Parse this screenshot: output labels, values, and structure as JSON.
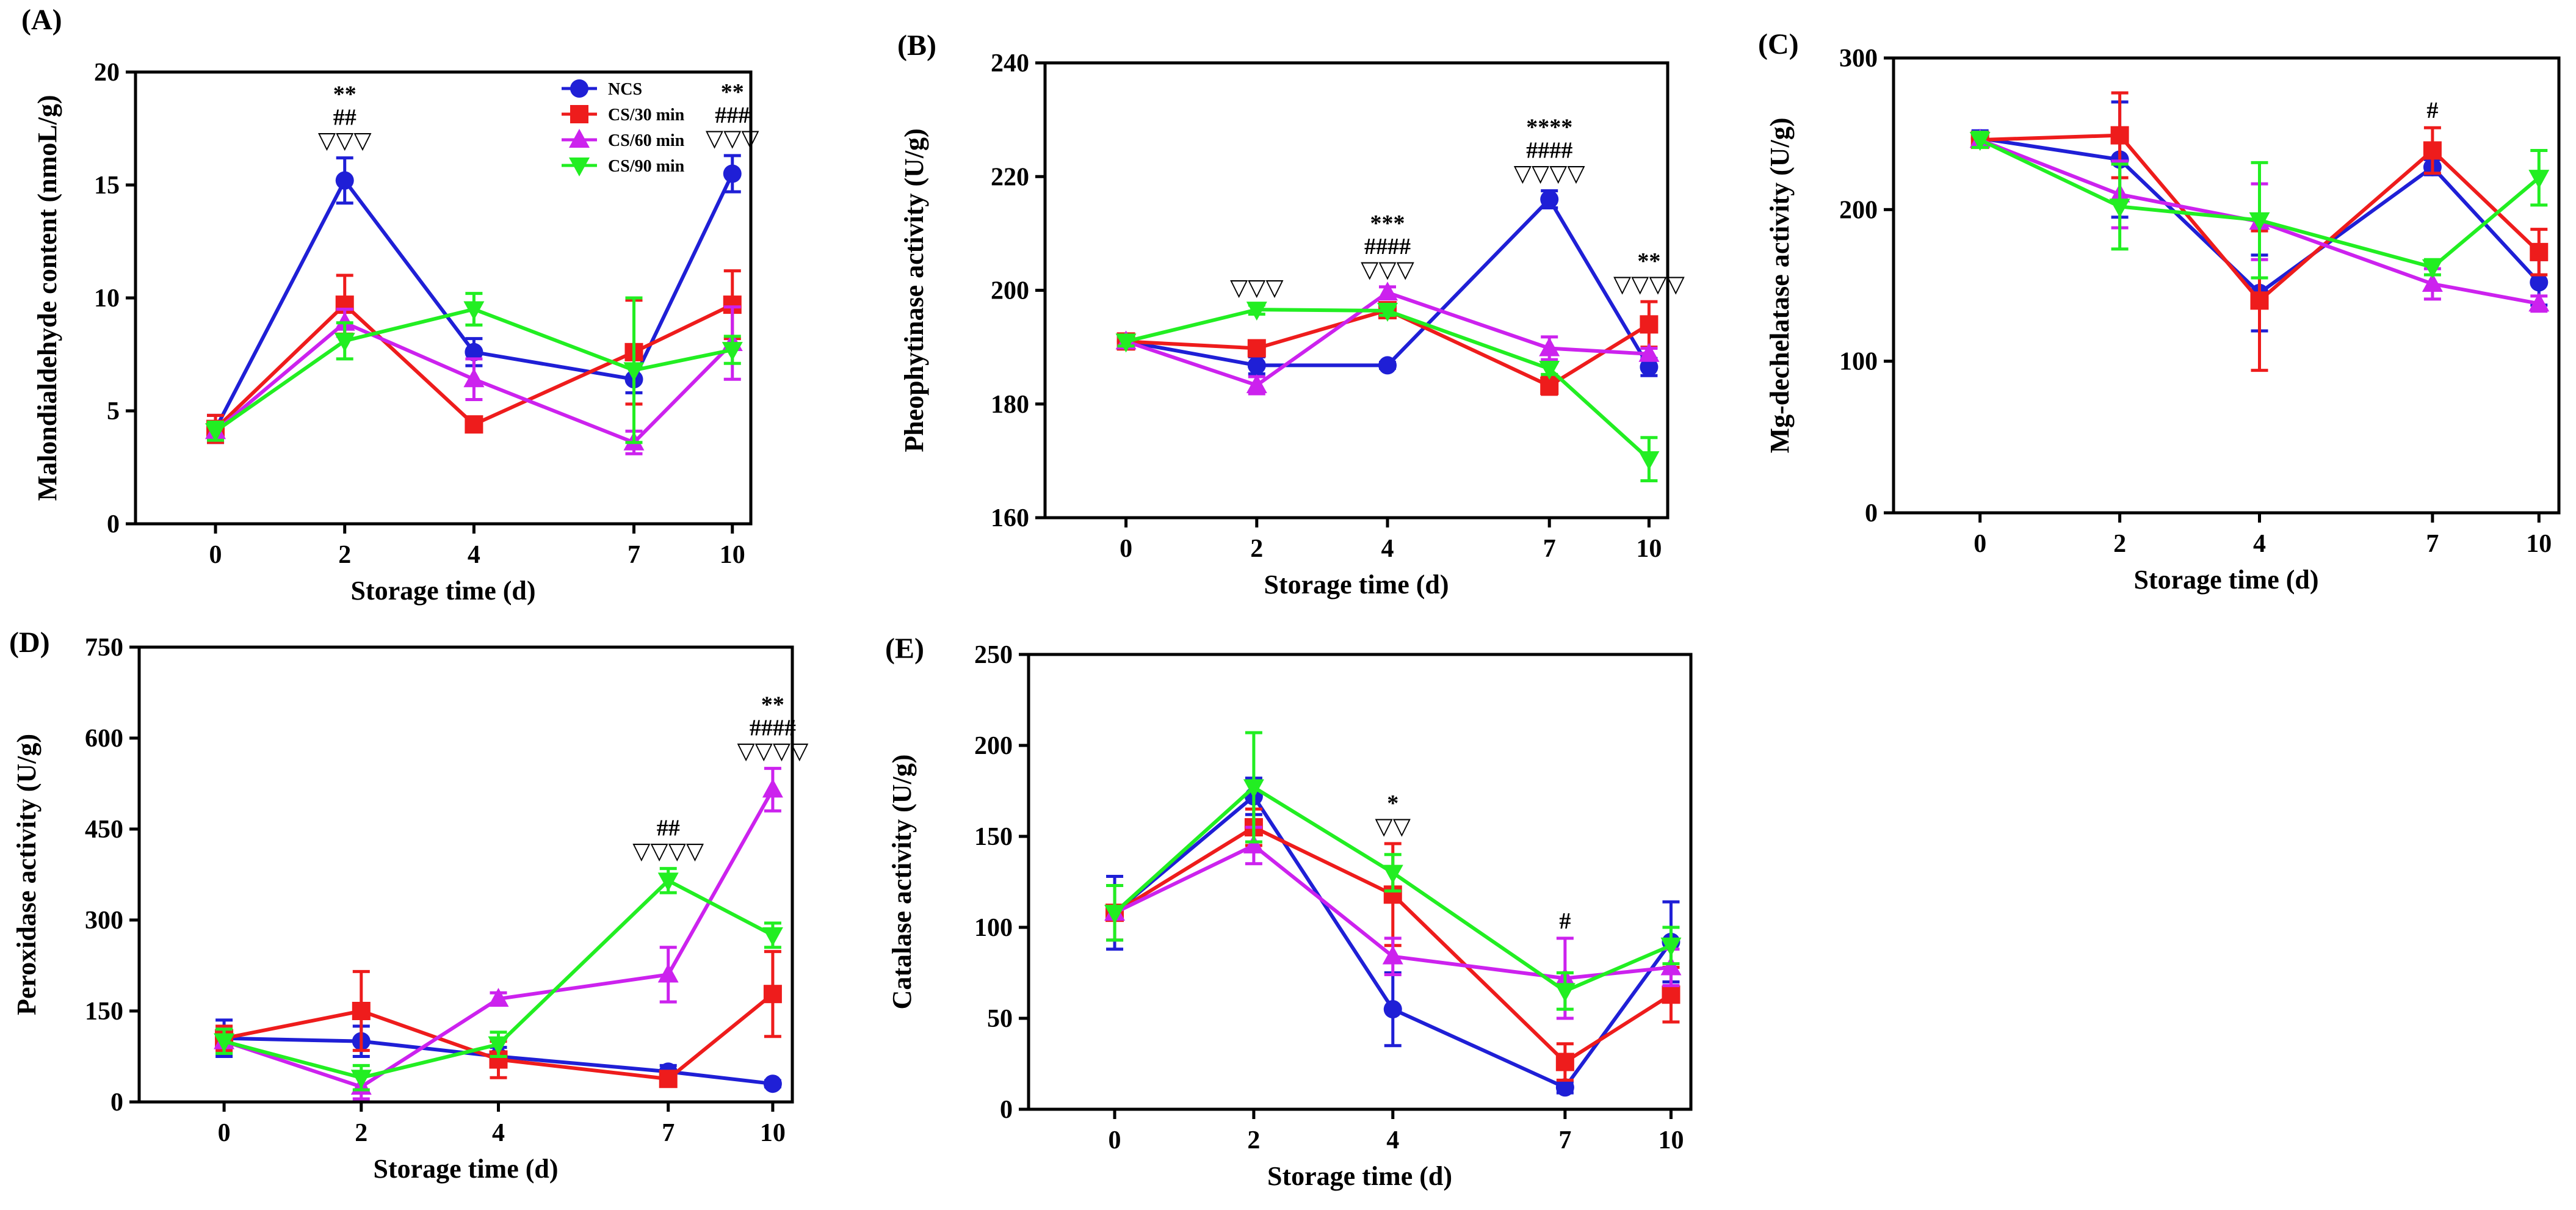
{
  "legend": [
    {
      "name": "NCS",
      "color": "#1f1fd6",
      "marker": "circle"
    },
    {
      "name": "CS/30 min",
      "color": "#ee1c1c",
      "marker": "square"
    },
    {
      "name": "CS/60 min",
      "color": "#cc22ee",
      "marker": "triangle-up"
    },
    {
      "name": "CS/90 min",
      "color": "#22ee22",
      "marker": "triangle-down"
    }
  ],
  "chart_data": [
    {
      "panel": "(A)",
      "type": "line",
      "xlabel": "Storage time (d)",
      "ylabel": "Malondialdehyde content (nmoL/g)",
      "x": [
        "0",
        "2",
        "4",
        "7",
        "10"
      ],
      "yticks": [
        "0",
        "5",
        "10",
        "15",
        "20"
      ],
      "ylim": [
        0,
        20
      ],
      "show_legend": true,
      "series": [
        {
          "name": "NCS",
          "values": [
            4.2,
            15.2,
            7.6,
            6.4,
            15.5
          ],
          "errors": [
            0.6,
            1.0,
            0.6,
            0.6,
            0.8
          ]
        },
        {
          "name": "CS/30 min",
          "values": [
            4.2,
            9.7,
            4.4,
            7.6,
            9.7
          ],
          "errors": [
            0.6,
            1.3,
            0.3,
            2.3,
            1.5
          ]
        },
        {
          "name": "CS/60 min",
          "values": [
            4.1,
            8.9,
            6.4,
            3.6,
            8.0
          ],
          "errors": [
            0.4,
            0.6,
            0.9,
            0.5,
            1.6
          ]
        },
        {
          "name": "CS/90 min",
          "values": [
            4.1,
            8.1,
            9.5,
            6.8,
            7.7
          ],
          "errors": [
            0.4,
            0.8,
            0.7,
            3.2,
            0.6
          ]
        }
      ],
      "annotations": [
        {
          "x": "2",
          "lines": [
            "**",
            "##",
            "▽▽▽"
          ]
        },
        {
          "x": "10",
          "lines": [
            "**",
            "###",
            "▽▽▽"
          ]
        }
      ]
    },
    {
      "panel": "(B)",
      "type": "line",
      "xlabel": "Storage time (d)",
      "ylabel": "Pheophytinase activity (U/g)",
      "x": [
        "0",
        "2",
        "4",
        "7",
        "10"
      ],
      "yticks": [
        "160",
        "180",
        "200",
        "220",
        "240"
      ],
      "ylim": [
        160,
        240
      ],
      "show_legend": false,
      "series": [
        {
          "name": "NCS",
          "values": [
            191,
            186.8,
            186.8,
            216,
            186.5
          ],
          "errors": [
            0.8,
            1.5,
            0.5,
            1.5,
            1.5
          ]
        },
        {
          "name": "CS/30 min",
          "values": [
            191,
            189.8,
            196.5,
            183.2,
            194
          ],
          "errors": [
            0.8,
            0.8,
            1.0,
            1.5,
            4.0
          ]
        },
        {
          "name": "CS/60 min",
          "values": [
            191,
            183.3,
            199.6,
            189.8,
            188.8
          ],
          "errors": [
            0.8,
            1.5,
            1.0,
            2.0,
            1.0
          ]
        },
        {
          "name": "CS/90 min",
          "values": [
            191,
            196.6,
            196.4,
            186.2,
            170.3
          ],
          "errors": [
            0.8,
            0.8,
            0.8,
            1.0,
            3.8
          ]
        }
      ],
      "annotations": [
        {
          "x": "2",
          "lines": [
            "▽▽▽"
          ]
        },
        {
          "x": "4",
          "lines": [
            "***",
            "####",
            "▽▽▽"
          ]
        },
        {
          "x": "7",
          "lines": [
            "****",
            "####",
            "▽▽▽▽"
          ]
        },
        {
          "x": "10",
          "lines": [
            "**",
            "▽▽▽▽"
          ]
        }
      ]
    },
    {
      "panel": "(C)",
      "type": "line",
      "xlabel": "Storage time (d)",
      "ylabel": "Mg-dechelatase activity (U/g)",
      "x": [
        "0",
        "2",
        "4",
        "7",
        "10"
      ],
      "yticks": [
        "0",
        "100",
        "200",
        "300"
      ],
      "ylim": [
        0,
        300
      ],
      "show_legend": false,
      "series": [
        {
          "name": "NCS",
          "values": [
            247,
            233,
            145,
            228,
            152
          ],
          "errors": [
            5,
            38,
            25,
            5,
            15
          ]
        },
        {
          "name": "CS/30 min",
          "values": [
            246,
            249,
            140,
            239,
            172
          ],
          "errors": [
            5,
            28,
            46,
            15,
            15
          ]
        },
        {
          "name": "CS/60 min",
          "values": [
            246,
            210,
            192,
            151,
            138
          ],
          "errors": [
            5,
            22,
            25,
            10,
            5
          ]
        },
        {
          "name": "CS/90 min",
          "values": [
            246,
            202,
            193,
            162,
            221
          ],
          "errors": [
            5,
            28,
            38,
            5,
            18
          ]
        }
      ],
      "annotations": [
        {
          "x": "7",
          "lines": [
            "#"
          ]
        }
      ]
    },
    {
      "panel": "(D)",
      "type": "line",
      "xlabel": "Storage time (d)",
      "ylabel": "Peroxidase activity (U/g)",
      "x": [
        "0",
        "2",
        "4",
        "7",
        "10"
      ],
      "yticks": [
        "0",
        "150",
        "300",
        "450",
        "600",
        "750"
      ],
      "ylim": [
        0,
        750
      ],
      "show_legend": false,
      "series": [
        {
          "name": "NCS",
          "values": [
            105,
            100,
            75,
            50,
            30
          ],
          "errors": [
            30,
            25,
            15,
            10,
            5
          ]
        },
        {
          "name": "CS/30 min",
          "values": [
            105,
            150,
            70,
            38,
            178
          ],
          "errors": [
            20,
            65,
            30,
            10,
            70
          ]
        },
        {
          "name": "CS/60 min",
          "values": [
            100,
            25,
            170,
            210,
            515
          ],
          "errors": [
            20,
            20,
            10,
            45,
            35
          ]
        },
        {
          "name": "CS/90 min",
          "values": [
            100,
            40,
            95,
            365,
            275
          ],
          "errors": [
            20,
            20,
            20,
            20,
            20
          ]
        }
      ],
      "annotations": [
        {
          "x": "7",
          "lines": [
            "##",
            "▽▽▽▽"
          ]
        },
        {
          "x": "10",
          "lines": [
            "**",
            "####",
            "▽▽▽▽"
          ]
        }
      ]
    },
    {
      "panel": "(E)",
      "type": "line",
      "xlabel": "Storage time (d)",
      "ylabel": "Catalase activity (U/g)",
      "x": [
        "0",
        "2",
        "4",
        "7",
        "10"
      ],
      "yticks": [
        "0",
        "50",
        "100",
        "150",
        "200",
        "250"
      ],
      "ylim": [
        0,
        250
      ],
      "show_legend": false,
      "series": [
        {
          "name": "NCS",
          "values": [
            108,
            172,
            55,
            12,
            92
          ],
          "errors": [
            20,
            10,
            20,
            3,
            22
          ]
        },
        {
          "name": "CS/30 min",
          "values": [
            108,
            155,
            118,
            26,
            63
          ],
          "errors": [
            15,
            10,
            28,
            10,
            15
          ]
        },
        {
          "name": "CS/60 min",
          "values": [
            108,
            145,
            84,
            72,
            78
          ],
          "errors": [
            15,
            10,
            10,
            22,
            10
          ]
        },
        {
          "name": "CS/90 min",
          "values": [
            108,
            177,
            130,
            65,
            90
          ],
          "errors": [
            15,
            30,
            10,
            10,
            10
          ]
        }
      ],
      "annotations": [
        {
          "x": "4",
          "lines": [
            "*",
            "▽▽"
          ]
        },
        {
          "x": "7",
          "lines": [
            "#"
          ]
        }
      ]
    }
  ]
}
